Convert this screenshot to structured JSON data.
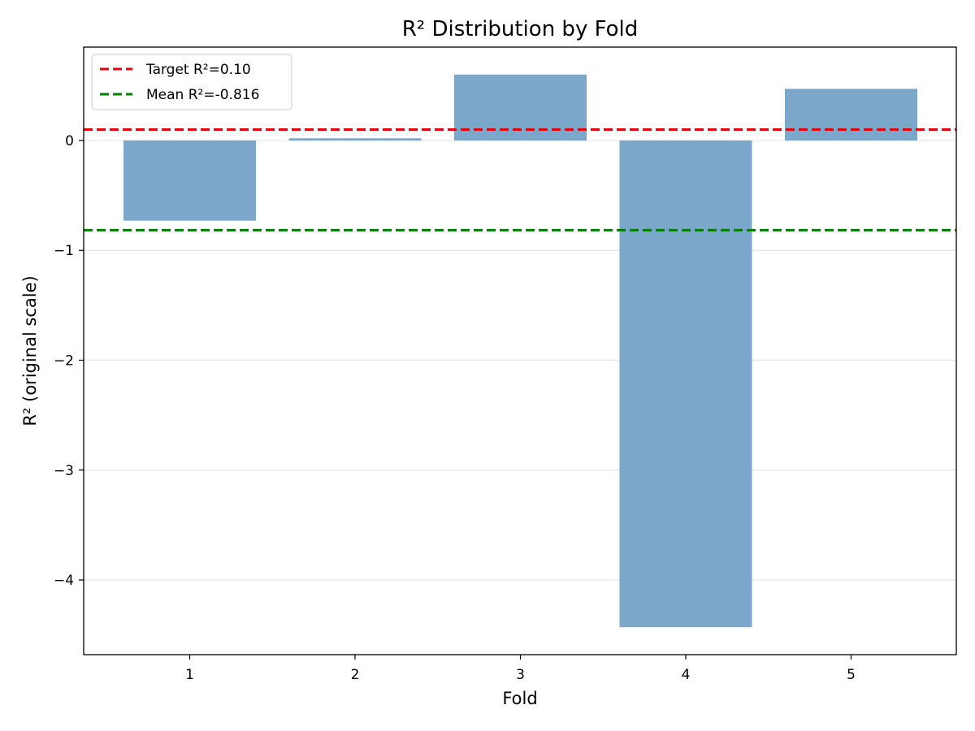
{
  "chart_data": {
    "type": "bar",
    "title": "R² Distribution by Fold",
    "xlabel": "Fold",
    "ylabel": "R² (original scale)",
    "categories": [
      "1",
      "2",
      "3",
      "4",
      "5"
    ],
    "values": [
      -0.73,
      0.02,
      0.6,
      -4.43,
      0.47
    ],
    "bar_color": "#7ba7cb",
    "ylim": [
      -4.68,
      0.85
    ],
    "yticks": [
      0,
      -1,
      -2,
      -3,
      -4
    ],
    "ytick_labels": [
      "0",
      "−1",
      "−2",
      "−3",
      "−4"
    ],
    "grid": "horizontal",
    "reference_lines": [
      {
        "label": "Target R²=0.10",
        "value": 0.1,
        "color": "#e8000b",
        "style": "dashed"
      },
      {
        "label": "Mean R²=-0.816",
        "value": -0.816,
        "color": "#008000",
        "style": "dashed"
      }
    ],
    "legend_position": "top-left"
  }
}
